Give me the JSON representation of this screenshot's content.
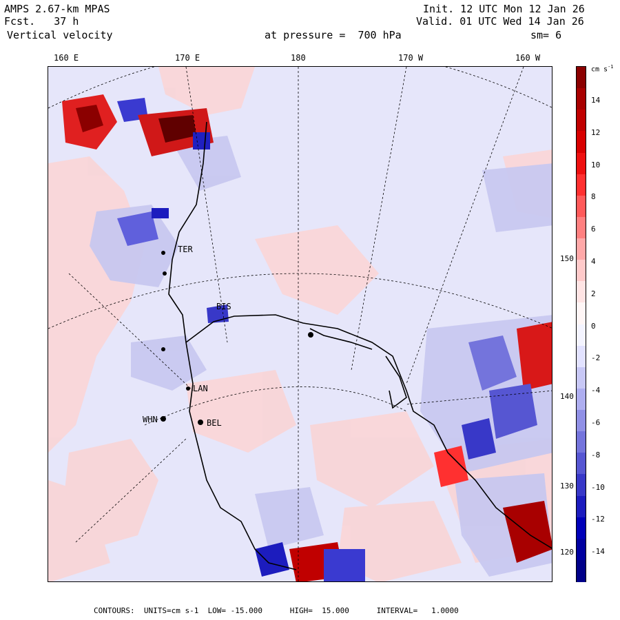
{
  "header": {
    "model": "AMPS 2.67-km MPAS",
    "forecast": "Fcst.   37 h",
    "field": "Vertical velocity",
    "pressure": "at pressure =  700 hPa",
    "init": "Init. 12 UTC Mon 12 Jan 26",
    "valid": "Valid. 01 UTC Wed 14 Jan 26",
    "smoothing": "sm= 6"
  },
  "map": {
    "longitude_labels": [
      "160 E",
      "170 E",
      "180",
      "170 W",
      "160 W"
    ],
    "latitude_labels": [
      "150 W",
      "140 W",
      "130 W",
      "120 W"
    ],
    "stations": [
      "BIS",
      "WHN",
      "LAN",
      "BEL",
      "TER"
    ],
    "colors": {
      "background": "#e6e6fa",
      "positive_light": "#fbd4d4",
      "negative_light": "#c8c8f0",
      "coast": "#000000"
    }
  },
  "colorbar": {
    "units": "cm s",
    "units_exp": "-1",
    "tick_labels": [
      "14",
      "12",
      "10",
      "8",
      "6",
      "4",
      "2",
      "0",
      "-2",
      "-4",
      "-6",
      "-8",
      "-10",
      "-12",
      "-14"
    ],
    "colors": [
      "#8b0000",
      "#a80000",
      "#c00000",
      "#d80000",
      "#ee1010",
      "#ff3030",
      "#ff5a5a",
      "#ff8080",
      "#ffa8a8",
      "#ffcaca",
      "#ffe4e4",
      "#fff6f6",
      "#f4f4ff",
      "#e2e2ff",
      "#c8c8f6",
      "#aeaef0",
      "#9090e6",
      "#7474dc",
      "#5656d2",
      "#3838c8",
      "#1c1cbe",
      "#0000b8",
      "#0000a0",
      "#000088"
    ]
  },
  "footer": {
    "text": "CONTOURS:  UNITS=cm s-1  LOW= -15.000      HIGH=  15.000      INTERVAL=   1.0000"
  }
}
